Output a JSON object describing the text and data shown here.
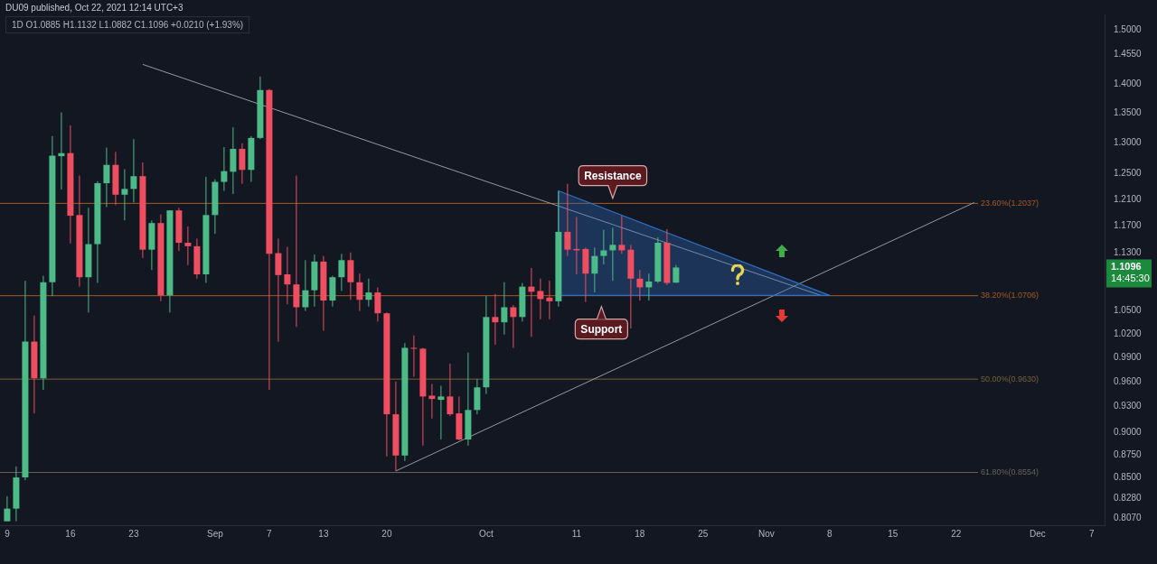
{
  "chart_data": {
    "type": "candlestick",
    "title": "DU09 published, Oct 22, 2021 12:14 UTC+3",
    "subtitle": "1D  O1.0885  H1.1132  L1.0882  C1.1096  +0.0210 (+1.93%)",
    "log": "y",
    "xlim": [
      "2021-08-08T05:00",
      "2021-12-08T10:00"
    ],
    "xticks": [
      {
        "value": "2021-08-09",
        "label": "9"
      },
      {
        "value": "2021-08-16",
        "label": "16"
      },
      {
        "value": "2021-08-23",
        "label": "23"
      },
      {
        "value": "2021-09-01",
        "label": "Sep"
      },
      {
        "value": "2021-09-07",
        "label": "7"
      },
      {
        "value": "2021-09-13",
        "label": "13"
      },
      {
        "value": "2021-09-20",
        "label": "20"
      },
      {
        "value": "2021-10-01",
        "label": "Oct"
      },
      {
        "value": "2021-10-11",
        "label": "11"
      },
      {
        "value": "2021-10-18",
        "label": "18"
      },
      {
        "value": "2021-10-25",
        "label": "25"
      },
      {
        "value": "2021-11-01",
        "label": "Nov"
      },
      {
        "value": "2021-11-08",
        "label": "8"
      },
      {
        "value": "2021-11-15",
        "label": "15"
      },
      {
        "value": "2021-11-22",
        "label": "22"
      },
      {
        "value": "2021-12-01",
        "label": "Dec"
      },
      {
        "value": "2021-12-07",
        "label": "7"
      }
    ],
    "ylim": [
      0.8035,
      1.53
    ],
    "yticks": [
      {
        "value": 1.5,
        "label": "1.5000"
      },
      {
        "value": 1.455,
        "label": "1.4550"
      },
      {
        "value": 1.4,
        "label": "1.4000"
      },
      {
        "value": 1.35,
        "label": "1.3500"
      },
      {
        "value": 1.3,
        "label": "1.3000"
      },
      {
        "value": 1.25,
        "label": "1.2500"
      },
      {
        "value": 1.21,
        "label": "1.2100"
      },
      {
        "value": 1.17,
        "label": "1.1700"
      },
      {
        "value": 1.13,
        "label": "1.1300"
      },
      {
        "value": 1.05,
        "label": "1.0500"
      },
      {
        "value": 1.02,
        "label": "1.0200"
      },
      {
        "value": 0.99,
        "label": "0.9900"
      },
      {
        "value": 0.96,
        "label": "0.9600"
      },
      {
        "value": 0.93,
        "label": "0.9300"
      },
      {
        "value": 0.9,
        "label": "0.9000"
      },
      {
        "value": 0.875,
        "label": "0.8750"
      },
      {
        "value": 0.85,
        "label": "0.8500"
      },
      {
        "value": 0.828,
        "label": "0.8280"
      },
      {
        "value": 0.807,
        "label": "0.8070"
      }
    ],
    "ref_lines": [
      {
        "axis": "y",
        "value": 1.2037,
        "label": "23.60%(1.2037)",
        "color": "#a35a22"
      },
      {
        "axis": "y",
        "value": 1.0706,
        "label": "38.20%(1.0706)",
        "color": "#a35a22"
      },
      {
        "axis": "y",
        "value": 0.963,
        "label": "50.00%(0.9630)",
        "color": "#7a6038"
      },
      {
        "axis": "y",
        "value": 0.8554,
        "label": "61.80%(0.8554)",
        "color": "#6a6458"
      }
    ],
    "annotations": [
      {
        "text": "Resistance",
        "x": "2021-10-15",
        "y": 1.195
      },
      {
        "text": "Support",
        "x": "2021-10-13T18:00",
        "y": 1.0706
      },
      "1.1096",
      "14:45:30"
    ],
    "series": [
      {
        "type": "area",
        "color": "#2f6fc4",
        "x": [
          "2021-10-09",
          "2021-11-08",
          "2021-10-09",
          "2021-10-09"
        ],
        "values": [
          1.223,
          1.071,
          1.071,
          1.223
        ]
      },
      {
        "type": "line",
        "color": "#9598a1",
        "x": [
          "2021-08-24",
          "2021-11-07"
        ],
        "values": [
          1.436,
          1.071
        ]
      },
      {
        "type": "line",
        "color": "#9598a1",
        "x": [
          "2021-09-21",
          "2021-11-24"
        ],
        "values": [
          0.857,
          1.205
        ]
      },
      {
        "type": "candlestick",
        "x": [
          "2021-08-09",
          "2021-08-10",
          "2021-08-11",
          "2021-08-12",
          "2021-08-13",
          "2021-08-14",
          "2021-08-15",
          "2021-08-16",
          "2021-08-17",
          "2021-08-18",
          "2021-08-19",
          "2021-08-20",
          "2021-08-21",
          "2021-08-22",
          "2021-08-23",
          "2021-08-24",
          "2021-08-25",
          "2021-08-26",
          "2021-08-27",
          "2021-08-28",
          "2021-08-29",
          "2021-08-30",
          "2021-08-31",
          "2021-09-01",
          "2021-09-02",
          "2021-09-03",
          "2021-09-04",
          "2021-09-05",
          "2021-09-06",
          "2021-09-07",
          "2021-09-08",
          "2021-09-09",
          "2021-09-10",
          "2021-09-11",
          "2021-09-12",
          "2021-09-13",
          "2021-09-14",
          "2021-09-15",
          "2021-09-16",
          "2021-09-17",
          "2021-09-18",
          "2021-09-19",
          "2021-09-20",
          "2021-09-21",
          "2021-09-22",
          "2021-09-23",
          "2021-09-24",
          "2021-09-25",
          "2021-09-26",
          "2021-09-27",
          "2021-09-28",
          "2021-09-29",
          "2021-09-30",
          "2021-10-01",
          "2021-10-02",
          "2021-10-03",
          "2021-10-04",
          "2021-10-05",
          "2021-10-06",
          "2021-10-07",
          "2021-10-08",
          "2021-10-09",
          "2021-10-10",
          "2021-10-11",
          "2021-10-12",
          "2021-10-13",
          "2021-10-14",
          "2021-10-15",
          "2021-10-16",
          "2021-10-17",
          "2021-10-18",
          "2021-10-19",
          "2021-10-20",
          "2021-10-21",
          "2021-10-22"
        ],
        "ohlc": [
          [
            0.804,
            0.83,
            0.804,
            0.817
          ],
          [
            0.817,
            0.862,
            0.804,
            0.85
          ],
          [
            0.85,
            1.091,
            0.847,
            1.01
          ],
          [
            1.01,
            1.044,
            0.922,
            0.964
          ],
          [
            0.964,
            1.098,
            0.95,
            1.089
          ],
          [
            1.089,
            1.311,
            1.07,
            1.279
          ],
          [
            1.278,
            1.351,
            1.225,
            1.283
          ],
          [
            1.283,
            1.329,
            1.144,
            1.185
          ],
          [
            1.186,
            1.247,
            1.083,
            1.096
          ],
          [
            1.096,
            1.197,
            1.048,
            1.143
          ],
          [
            1.143,
            1.238,
            1.088,
            1.235
          ],
          [
            1.235,
            1.292,
            1.198,
            1.264
          ],
          [
            1.264,
            1.285,
            1.201,
            1.217
          ],
          [
            1.217,
            1.257,
            1.178,
            1.226
          ],
          [
            1.226,
            1.306,
            1.205,
            1.246
          ],
          [
            1.246,
            1.268,
            1.123,
            1.135
          ],
          [
            1.135,
            1.178,
            1.106,
            1.174
          ],
          [
            1.174,
            1.187,
            1.063,
            1.071
          ],
          [
            1.071,
            1.193,
            1.048,
            1.193
          ],
          [
            1.193,
            1.197,
            1.133,
            1.145
          ],
          [
            1.145,
            1.169,
            1.113,
            1.14
          ],
          [
            1.14,
            1.151,
            1.094,
            1.1
          ],
          [
            1.1,
            1.245,
            1.088,
            1.186
          ],
          [
            1.186,
            1.241,
            1.158,
            1.237
          ],
          [
            1.237,
            1.293,
            1.223,
            1.254
          ],
          [
            1.253,
            1.326,
            1.218,
            1.29
          ],
          [
            1.29,
            1.299,
            1.234,
            1.256
          ],
          [
            1.256,
            1.311,
            1.237,
            1.308
          ],
          [
            1.308,
            1.414,
            1.306,
            1.39
          ],
          [
            1.39,
            1.392,
            0.95,
            1.129
          ],
          [
            1.13,
            1.151,
            1.01,
            1.099
          ],
          [
            1.1,
            1.139,
            1.059,
            1.086
          ],
          [
            1.086,
            1.247,
            1.029,
            1.055
          ],
          [
            1.055,
            1.12,
            1.05,
            1.078
          ],
          [
            1.078,
            1.128,
            1.056,
            1.118
          ],
          [
            1.118,
            1.126,
            1.024,
            1.064
          ],
          [
            1.064,
            1.098,
            1.056,
            1.096
          ],
          [
            1.096,
            1.129,
            1.077,
            1.12
          ],
          [
            1.12,
            1.131,
            1.065,
            1.089
          ],
          [
            1.089,
            1.101,
            1.05,
            1.065
          ],
          [
            1.065,
            1.094,
            1.056,
            1.075
          ],
          [
            1.075,
            1.082,
            1.036,
            1.047
          ],
          [
            1.047,
            1.048,
            0.873,
            0.921
          ],
          [
            0.921,
            0.96,
            0.857,
            0.874
          ],
          [
            0.874,
            1.008,
            0.868,
            1.002
          ],
          [
            1.002,
            1.018,
            0.966,
            1.001
          ],
          [
            1.001,
            1.002,
            0.885,
            0.942
          ],
          [
            0.943,
            0.957,
            0.916,
            0.939
          ],
          [
            0.938,
            0.955,
            0.892,
            0.942
          ],
          [
            0.942,
            0.982,
            0.919,
            0.921
          ],
          [
            0.922,
            0.942,
            0.891,
            0.892
          ],
          [
            0.892,
            0.996,
            0.885,
            0.926
          ],
          [
            0.926,
            0.963,
            0.921,
            0.953
          ],
          [
            0.953,
            1.07,
            0.945,
            1.042
          ],
          [
            1.042,
            1.073,
            1.006,
            1.035
          ],
          [
            1.035,
            1.089,
            1.019,
            1.055
          ],
          [
            1.055,
            1.058,
            1.002,
            1.042
          ],
          [
            1.042,
            1.088,
            1.036,
            1.083
          ],
          [
            1.083,
            1.109,
            1.016,
            1.076
          ],
          [
            1.077,
            1.094,
            1.039,
            1.066
          ],
          [
            1.068,
            1.091,
            1.039,
            1.063
          ],
          [
            1.063,
            1.223,
            1.056,
            1.161
          ],
          [
            1.161,
            1.234,
            1.126,
            1.135
          ],
          [
            1.136,
            1.183,
            1.1,
            1.134
          ],
          [
            1.136,
            1.138,
            1.062,
            1.101
          ],
          [
            1.101,
            1.138,
            1.075,
            1.126
          ],
          [
            1.126,
            1.164,
            1.114,
            1.134
          ],
          [
            1.134,
            1.167,
            1.091,
            1.142
          ],
          [
            1.142,
            1.185,
            1.129,
            1.134
          ],
          [
            1.135,
            1.142,
            1.027,
            1.094
          ],
          [
            1.094,
            1.106,
            1.064,
            1.082
          ],
          [
            1.082,
            1.101,
            1.064,
            1.09
          ],
          [
            1.09,
            1.153,
            1.088,
            1.145
          ],
          [
            1.145,
            1.165,
            1.085,
            1.088
          ],
          [
            1.0885,
            1.1132,
            1.0882,
            1.1096
          ]
        ],
        "colors": [
          "#4cbb87",
          "#4cbb87",
          "#4cbb87",
          "#ee4e5f",
          "#4cbb87",
          "#4cbb87",
          "#4cbb87",
          "#ee4e5f",
          "#ee4e5f",
          "#4cbb87",
          "#4cbb87",
          "#4cbb87",
          "#ee4e5f",
          "#4cbb87",
          "#4cbb87",
          "#ee4e5f",
          "#4cbb87",
          "#ee4e5f",
          "#4cbb87",
          "#ee4e5f",
          "#ee4e5f",
          "#ee4e5f",
          "#4cbb87",
          "#4cbb87",
          "#4cbb87",
          "#4cbb87",
          "#ee4e5f",
          "#4cbb87",
          "#4cbb87",
          "#ee4e5f",
          "#ee4e5f",
          "#ee4e5f",
          "#ee4e5f",
          "#4cbb87",
          "#4cbb87",
          "#ee4e5f",
          "#4cbb87",
          "#4cbb87",
          "#ee4e5f",
          "#ee4e5f",
          "#4cbb87",
          "#ee4e5f",
          "#ee4e5f",
          "#ee4e5f",
          "#4cbb87",
          "#ee4e5f",
          "#ee4e5f",
          "#ee4e5f",
          "#4cbb87",
          "#ee4e5f",
          "#ee4e5f",
          "#4cbb87",
          "#4cbb87",
          "#4cbb87",
          "#ee4e5f",
          "#4cbb87",
          "#ee4e5f",
          "#4cbb87",
          "#ee4e5f",
          "#ee4e5f",
          "#ee4e5f",
          "#4cbb87",
          "#ee4e5f",
          "#ee4e5f",
          "#ee4e5f",
          "#4cbb87",
          "#4cbb87",
          "#4cbb87",
          "#ee4e5f",
          "#ee4e5f",
          "#ee4e5f",
          "#4cbb87",
          "#4cbb87",
          "#ee4e5f",
          "#4cbb87"
        ]
      }
    ]
  }
}
